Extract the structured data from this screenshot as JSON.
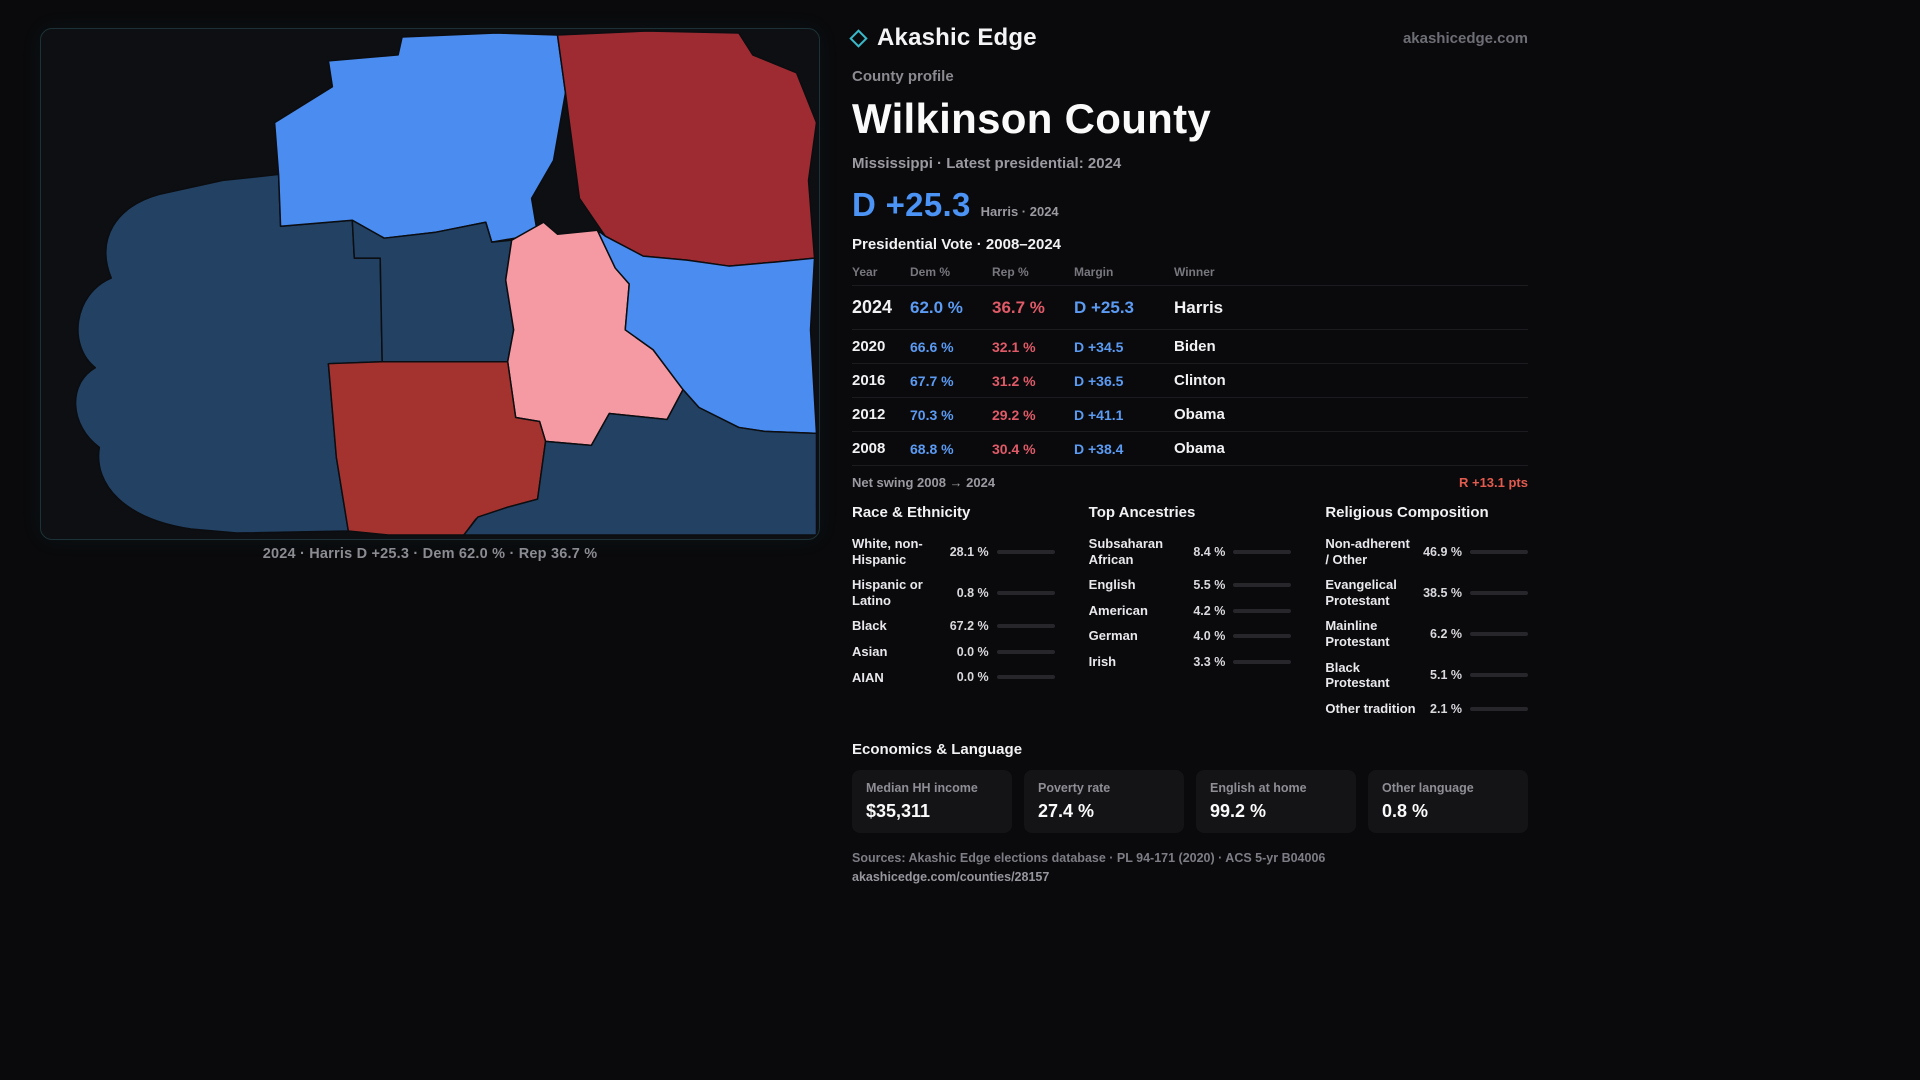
{
  "brand": {
    "name": "Akashic Edge",
    "domain": "akashicedge.com"
  },
  "profile": {
    "kicker": "County profile",
    "title": "Wilkinson County",
    "subtitle": "Mississippi · Latest presidential: 2024",
    "headline_margin": "D +25.3",
    "headline_note": "Harris · 2024"
  },
  "map": {
    "caption": "2024 · Harris D +25.3 · Dem 62.0 % · Rep 36.7 %",
    "colors": {
      "dem_strong": "#4a8cf0",
      "dem_dark": "#224163",
      "rep_dark": "#9e2b32",
      "rep_light": "#f59aa3"
    }
  },
  "vote": {
    "title": "Presidential Vote · 2008–2024",
    "columns": [
      "Year",
      "Dem %",
      "Rep %",
      "Margin",
      "Winner"
    ],
    "rows": [
      {
        "year": "2024",
        "dem": "62.0 %",
        "rep": "36.7 %",
        "margin": "D +25.3",
        "winner": "Harris"
      },
      {
        "year": "2020",
        "dem": "66.6 %",
        "rep": "32.1 %",
        "margin": "D +34.5",
        "winner": "Biden"
      },
      {
        "year": "2016",
        "dem": "67.7 %",
        "rep": "31.2 %",
        "margin": "D +36.5",
        "winner": "Clinton"
      },
      {
        "year": "2012",
        "dem": "70.3 %",
        "rep": "29.2 %",
        "margin": "D +41.1",
        "winner": "Obama"
      },
      {
        "year": "2008",
        "dem": "68.8 %",
        "rep": "30.4 %",
        "margin": "D +38.4",
        "winner": "Obama"
      }
    ],
    "net_swing_label": "Net swing 2008 → 2024",
    "net_swing_value": "R +13.1 pts"
  },
  "race": {
    "title": "Race & Ethnicity",
    "rows": [
      {
        "label": "White, non-Hispanic",
        "value": "28.1 %",
        "pct": 28.1,
        "color": "#97a6bc"
      },
      {
        "label": "Hispanic or Latino",
        "value": "0.8 %",
        "pct": 0.8,
        "color": "#d98a52"
      },
      {
        "label": "Black",
        "value": "67.2 %",
        "pct": 67.2,
        "color": "#a78bfa"
      },
      {
        "label": "Asian",
        "value": "0.0 %",
        "pct": 0,
        "color": "#a78bfa"
      },
      {
        "label": "AIAN",
        "value": "0.0 %",
        "pct": 0,
        "color": "#a78bfa"
      }
    ]
  },
  "ancestries": {
    "title": "Top Ancestries",
    "rows": [
      {
        "label": "Subsaharan African",
        "value": "8.4 %",
        "pct": 8.4,
        "color": "#8a8df2"
      },
      {
        "label": "English",
        "value": "5.5 %",
        "pct": 5.5,
        "color": "#9aa0ab"
      },
      {
        "label": "American",
        "value": "4.2 %",
        "pct": 4.2,
        "color": "#9aa0ab"
      },
      {
        "label": "German",
        "value": "4.0 %",
        "pct": 4.0,
        "color": "#9aa0ab"
      },
      {
        "label": "Irish",
        "value": "3.3 %",
        "pct": 3.3,
        "color": "#9aa0ab"
      }
    ]
  },
  "religion": {
    "title": "Religious Composition",
    "rows": [
      {
        "label": "Non-adherent / Other",
        "value": "46.9 %",
        "pct": 46.9,
        "color": "#8f96a3"
      },
      {
        "label": "Evangelical Protestant",
        "value": "38.5 %",
        "pct": 38.5,
        "color": "#e8808a"
      },
      {
        "label": "Mainline Protestant",
        "value": "6.2 %",
        "pct": 6.2,
        "color": "#6f8ff5"
      },
      {
        "label": "Black Protestant",
        "value": "5.1 %",
        "pct": 5.1,
        "color": "#9b8cf0"
      },
      {
        "label": "Other tradition",
        "value": "2.1 %",
        "pct": 2.1,
        "color": "#9aa0ab"
      }
    ]
  },
  "economics": {
    "title": "Economics & Language",
    "cards": [
      {
        "label": "Median HH income",
        "value": "$35,311"
      },
      {
        "label": "Poverty rate",
        "value": "27.4 %"
      },
      {
        "label": "English at home",
        "value": "99.2 %"
      },
      {
        "label": "Other language",
        "value": "0.8 %"
      }
    ]
  },
  "footer": {
    "sources": "Sources: Akashic Edge elections database · PL 94-171 (2020) · ACS 5-yr B04006",
    "permalink": "akashicedge.com/counties/28157"
  }
}
